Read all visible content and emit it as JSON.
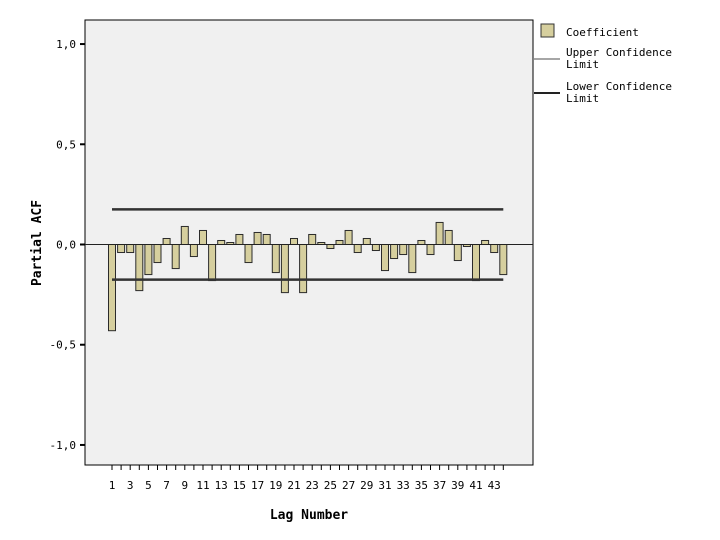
{
  "chart_data": {
    "type": "bar",
    "xlabel": "Lag Number",
    "ylabel": "Partial ACF",
    "ylim": [
      -1.1,
      1.12
    ],
    "yticks": [
      1.0,
      0.5,
      0.0,
      -0.5,
      -1.0
    ],
    "ytick_labels": [
      "1,0",
      "0,5",
      "0,0",
      "-0,5",
      "-1,0"
    ],
    "xtick_labels": [
      "1",
      "3",
      "5",
      "7",
      "9",
      "11",
      "13",
      "15",
      "17",
      "19",
      "21",
      "23",
      "25",
      "27",
      "29",
      "31",
      "33",
      "35",
      "37",
      "39",
      "41",
      "43"
    ],
    "lags": [
      1,
      2,
      3,
      4,
      5,
      6,
      7,
      8,
      9,
      10,
      11,
      12,
      13,
      14,
      15,
      16,
      17,
      18,
      19,
      20,
      21,
      22,
      23,
      24,
      25,
      26,
      27,
      28,
      29,
      30,
      31,
      32,
      33,
      34,
      35,
      36,
      37,
      38,
      39,
      40,
      41,
      42,
      43,
      44
    ],
    "series": [
      {
        "name": "Coefficient",
        "values": [
          -0.43,
          -0.04,
          -0.04,
          -0.23,
          -0.15,
          -0.09,
          0.03,
          -0.12,
          0.09,
          -0.06,
          0.07,
          -0.18,
          0.02,
          0.01,
          0.05,
          -0.09,
          0.06,
          0.05,
          -0.14,
          -0.24,
          0.03,
          -0.24,
          0.05,
          0.01,
          -0.02,
          0.02,
          0.07,
          -0.04,
          0.03,
          -0.03,
          -0.13,
          -0.07,
          -0.05,
          -0.14,
          0.02,
          -0.05,
          0.11,
          0.07,
          -0.08,
          -0.01,
          -0.18,
          0.02,
          -0.04,
          -0.15
        ]
      }
    ],
    "upper_confidence_limit": 0.175,
    "lower_confidence_limit": -0.175,
    "legend": {
      "position": "right",
      "entries": [
        {
          "label": "Coefficient",
          "kind": "box"
        },
        {
          "label": "Upper Confidence Limit",
          "kind": "line"
        },
        {
          "label": "Lower Confidence Limit",
          "kind": "line"
        }
      ]
    },
    "colors": {
      "bar_fill": "#d6cf9e",
      "bar_stroke": "#2b2b2b",
      "plot_background": "#f0f0f0",
      "limit_line": "#333333",
      "axis": "#000000"
    },
    "grid": false
  }
}
